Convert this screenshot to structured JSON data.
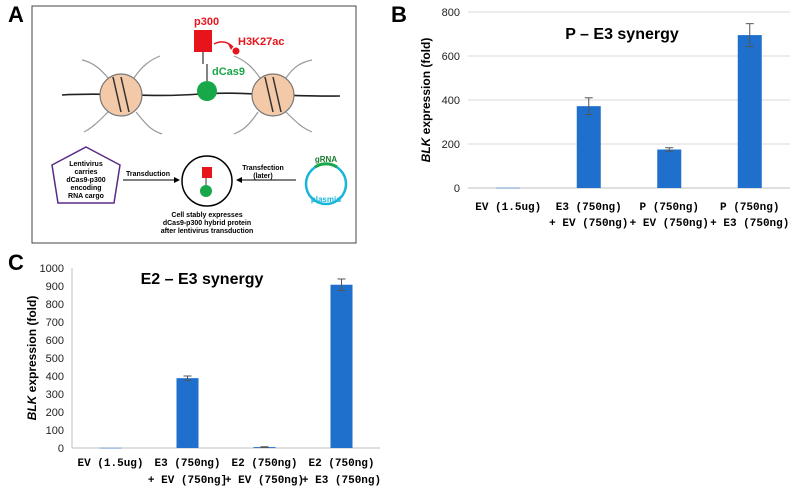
{
  "panels": {
    "a": "A",
    "b": "B",
    "c": "C"
  },
  "schematic": {
    "p300": "p300",
    "mark": "H3K27ac",
    "dcas9": "dCas9",
    "lentivirus_text": [
      "Lentivirus",
      "carries",
      "dCas9-p300",
      "encoding",
      "RNA cargo"
    ],
    "transduction": "Transduction",
    "transfection": [
      "Transfection",
      "(later)"
    ],
    "grna": "gRNA",
    "plasmid": "plasmid",
    "cell_caption": [
      "Cell stably expresses",
      "dCas9-p300 hybrid protein",
      "after lentivirus transduction"
    ]
  },
  "colors": {
    "bar": "#1f6fcc",
    "red": "#e8141c",
    "green": "#18a84a",
    "purple": "#5b2a86",
    "cyan": "#19b6d9",
    "nucleosome": "#f4c9a8"
  },
  "chart_data": [
    {
      "id": "B",
      "type": "bar",
      "title": "P – E3 synergy",
      "ylabel_italic": "BLK",
      "ylabel_rest": " expression (fold)",
      "ylim": [
        0,
        800
      ],
      "yticks": [
        0,
        200,
        400,
        600,
        800
      ],
      "grid": true,
      "categories": [
        [
          "EV (1.5ug)"
        ],
        [
          "E3 (750ng)",
          "+ EV (750ng)"
        ],
        [
          "P (750ng)",
          "+ EV (750ng)"
        ],
        [
          "P (750ng)",
          "+ E3 (750ng)"
        ]
      ],
      "values": [
        1,
        372,
        175,
        695
      ],
      "errors": [
        0,
        38,
        8,
        52
      ]
    },
    {
      "id": "C",
      "type": "bar",
      "title": "E2 – E3 synergy",
      "ylabel_italic": "BLK",
      "ylabel_rest": " expression (fold)",
      "ylim": [
        0,
        1000
      ],
      "yticks": [
        0,
        100,
        200,
        300,
        400,
        500,
        600,
        700,
        800,
        900,
        1000
      ],
      "grid": false,
      "categories": [
        [
          "EV (1.5ug)"
        ],
        [
          "E3 (750ng)",
          "+ EV (750ng]"
        ],
        [
          "E2 (750ng)",
          "+ EV (750ng)"
        ],
        [
          "E2 (750ng)",
          "+ E3 (750ng)"
        ]
      ],
      "values": [
        1,
        388,
        5,
        907
      ],
      "errors": [
        0,
        12,
        2,
        32
      ]
    }
  ]
}
